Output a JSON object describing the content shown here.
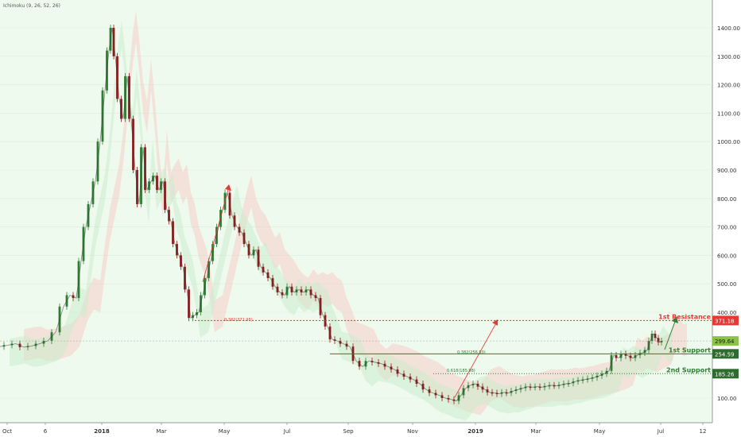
{
  "indicator_label": "Ichimoku (9, 26, 52, 26)",
  "colors": {
    "background": "#e8f5e9",
    "chart_bg": "#effaef",
    "axis_bg": "#ffffff",
    "candle_up": "#2e7d32",
    "candle_down": "#8d1c1c",
    "cloud_bear": "#f7c6c0",
    "cloud_bull": "#c8ecc9",
    "resistance": "#e53935",
    "support": "#2e7d32",
    "support_label_bg": "#2e6b2e",
    "current_price_bg": "#8bc34a",
    "grid": "#d9eedb"
  },
  "chart_data": {
    "type": "line",
    "title": "",
    "x_tick_labels": [
      "Oct",
      "6",
      "2018",
      "Mar",
      "May",
      "Jul",
      "Sep",
      "Nov",
      "2019",
      "Mar",
      "May",
      "Jul",
      "12"
    ],
    "y_tick_labels": [
      "1400.00",
      "1300.00",
      "1200.00",
      "1100.00",
      "1000.00",
      "900.00",
      "800.00",
      "700.00",
      "600.00",
      "500.00",
      "400.00",
      "100.00"
    ],
    "y_ticks": [
      1400,
      1300,
      1200,
      1100,
      1000,
      900,
      800,
      700,
      600,
      500,
      400,
      100
    ],
    "ylim": [
      60,
      1480
    ],
    "series": [
      {
        "points": [
          [
            0,
            280
          ],
          [
            10,
            285
          ],
          [
            20,
            290
          ],
          [
            30,
            278
          ],
          [
            40,
            282
          ],
          [
            50,
            290
          ],
          [
            60,
            300
          ],
          [
            70,
            330
          ],
          [
            80,
            420
          ],
          [
            88,
            460
          ],
          [
            96,
            450
          ],
          [
            102,
            580
          ],
          [
            108,
            700
          ],
          [
            114,
            780
          ],
          [
            120,
            860
          ],
          [
            126,
            1000
          ],
          [
            132,
            1180
          ],
          [
            137,
            1320
          ],
          [
            141,
            1400
          ],
          [
            145,
            1300
          ],
          [
            150,
            1150
          ],
          [
            155,
            1080
          ],
          [
            160,
            1230
          ],
          [
            165,
            1080
          ],
          [
            170,
            900
          ],
          [
            175,
            780
          ],
          [
            180,
            980
          ],
          [
            185,
            830
          ],
          [
            190,
            860
          ],
          [
            195,
            880
          ],
          [
            200,
            830
          ],
          [
            205,
            860
          ],
          [
            210,
            760
          ],
          [
            215,
            720
          ],
          [
            220,
            640
          ],
          [
            225,
            600
          ],
          [
            230,
            560
          ],
          [
            235,
            480
          ],
          [
            240,
            380
          ],
          [
            245,
            390
          ],
          [
            250,
            400
          ],
          [
            255,
            460
          ],
          [
            260,
            520
          ],
          [
            265,
            580
          ],
          [
            270,
            640
          ],
          [
            275,
            700
          ],
          [
            280,
            760
          ],
          [
            286,
            820
          ],
          [
            292,
            740
          ],
          [
            298,
            700
          ],
          [
            304,
            680
          ],
          [
            310,
            640
          ],
          [
            316,
            600
          ],
          [
            322,
            620
          ],
          [
            328,
            560
          ],
          [
            334,
            540
          ],
          [
            340,
            520
          ],
          [
            346,
            490
          ],
          [
            352,
            470
          ],
          [
            358,
            460
          ],
          [
            364,
            490
          ],
          [
            370,
            470
          ],
          [
            376,
            480
          ],
          [
            382,
            470
          ],
          [
            388,
            480
          ],
          [
            394,
            460
          ],
          [
            400,
            450
          ],
          [
            406,
            390
          ],
          [
            412,
            350
          ],
          [
            418,
            305
          ],
          [
            424,
            300
          ],
          [
            432,
            290
          ],
          [
            440,
            280
          ],
          [
            448,
            230
          ],
          [
            456,
            210
          ],
          [
            464,
            230
          ],
          [
            472,
            225
          ],
          [
            480,
            220
          ],
          [
            488,
            210
          ],
          [
            496,
            200
          ],
          [
            504,
            185
          ],
          [
            512,
            175
          ],
          [
            520,
            165
          ],
          [
            528,
            150
          ],
          [
            536,
            130
          ],
          [
            544,
            118
          ],
          [
            552,
            110
          ],
          [
            560,
            100
          ],
          [
            568,
            95
          ],
          [
            574,
            90
          ],
          [
            580,
            110
          ],
          [
            586,
            135
          ],
          [
            592,
            145
          ],
          [
            598,
            150
          ],
          [
            604,
            140
          ],
          [
            610,
            130
          ],
          [
            616,
            120
          ],
          [
            622,
            118
          ],
          [
            628,
            115
          ],
          [
            634,
            120
          ],
          [
            640,
            118
          ],
          [
            646,
            125
          ],
          [
            652,
            130
          ],
          [
            658,
            135
          ],
          [
            664,
            140
          ],
          [
            670,
            138
          ],
          [
            676,
            140
          ],
          [
            682,
            138
          ],
          [
            688,
            142
          ],
          [
            694,
            145
          ],
          [
            700,
            143
          ],
          [
            706,
            146
          ],
          [
            712,
            150
          ],
          [
            718,
            152
          ],
          [
            724,
            158
          ],
          [
            730,
            162
          ],
          [
            736,
            165
          ],
          [
            742,
            168
          ],
          [
            748,
            172
          ],
          [
            754,
            178
          ],
          [
            760,
            185
          ],
          [
            766,
            195
          ],
          [
            772,
            250
          ],
          [
            778,
            240
          ],
          [
            784,
            255
          ],
          [
            790,
            248
          ],
          [
            796,
            240
          ],
          [
            802,
            250
          ],
          [
            808,
            258
          ],
          [
            814,
            268
          ],
          [
            818,
            300
          ],
          [
            822,
            325
          ],
          [
            826,
            310
          ],
          [
            830,
            295
          ],
          [
            834,
            300
          ]
        ]
      }
    ],
    "annotations": [
      {
        "label": "1st Resistance",
        "value": "371.18",
        "price": 371.18
      },
      {
        "label": "1st Support",
        "value": "254.59",
        "price": 254.59
      },
      {
        "label": "2nd Support",
        "value": "185.26",
        "price": 185.26
      },
      {
        "label": "current",
        "value": "299.64",
        "price": 299.64
      }
    ],
    "fib_labels": [
      "0.382(371.95)",
      "0.382(256.50)",
      "0.618(185.98)"
    ]
  }
}
